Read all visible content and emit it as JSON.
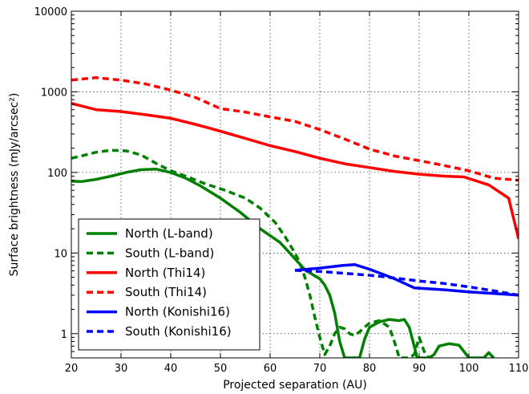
{
  "chart_data": {
    "type": "line",
    "xlabel": "Projected separation (AU)",
    "ylabel": "Surface brightness (mJy/arcsec²)",
    "xlim": [
      20,
      110
    ],
    "ylim": [
      0.5,
      10000
    ],
    "yscale": "log",
    "grid": true,
    "x_ticks": [
      "20",
      "30",
      "40",
      "50",
      "60",
      "70",
      "80",
      "90",
      "100",
      "110"
    ],
    "y_ticks": [
      "1",
      "10",
      "100",
      "1000",
      "10000"
    ],
    "legend_position": "lower-left",
    "series": [
      {
        "name": "North (L-band)",
        "color": "#008000",
        "style": "solid",
        "x": [
          20,
          22,
          25,
          28,
          31,
          34,
          37,
          40,
          43,
          46,
          50,
          54,
          58,
          62,
          65,
          67,
          69,
          70,
          71,
          72,
          73,
          74,
          75,
          75.6,
          76,
          77,
          78,
          79,
          80,
          82,
          84,
          86,
          87,
          88,
          89,
          89.6,
          90.5,
          92,
          93,
          94,
          96,
          98,
          99,
          100,
          103,
          104,
          105
        ],
        "y": [
          78,
          77,
          82,
          90,
          100,
          108,
          110,
          100,
          85,
          68,
          48,
          32,
          20,
          13.5,
          8.5,
          6.2,
          5.2,
          4.8,
          4,
          3,
          1.8,
          0.8,
          0.5,
          0.5,
          0.5,
          0.5,
          0.5,
          0.85,
          1.2,
          1.4,
          1.5,
          1.45,
          1.5,
          1.2,
          0.7,
          0.5,
          0.5,
          0.5,
          0.55,
          0.7,
          0.75,
          0.72,
          0.6,
          0.5,
          0.5,
          0.58,
          0.5
        ]
      },
      {
        "name": "South (L-band)",
        "color": "#008000",
        "style": "dashed",
        "x": [
          20,
          22,
          25,
          28,
          31,
          34,
          37,
          40,
          43,
          47,
          51,
          55,
          58,
          61,
          63,
          65,
          66,
          67,
          68,
          69,
          70,
          71,
          72,
          73,
          74,
          75,
          76,
          77,
          78,
          79,
          80,
          82,
          84,
          85,
          86,
          87,
          88,
          89,
          90,
          91,
          92
        ],
        "y": [
          150,
          160,
          178,
          188,
          185,
          165,
          130,
          105,
          90,
          72,
          60,
          48,
          36,
          24,
          16,
          10,
          7.5,
          5,
          3,
          1.6,
          0.9,
          0.55,
          0.7,
          1,
          1.2,
          1.15,
          1,
          0.95,
          1.05,
          1.2,
          1.35,
          1.45,
          1.2,
          0.8,
          0.5,
          0.5,
          0.5,
          0.55,
          0.9,
          0.6,
          0.5
        ]
      },
      {
        "name": "North (Thi14)",
        "color": "#ff0000",
        "style": "solid",
        "x": [
          20,
          25,
          30,
          35,
          40,
          45,
          50,
          55,
          60,
          65,
          70,
          75,
          80,
          85,
          90,
          95,
          99,
          104,
          108,
          110
        ],
        "y": [
          720,
          600,
          570,
          520,
          470,
          395,
          325,
          265,
          215,
          182,
          150,
          128,
          115,
          103,
          95,
          90,
          88,
          70,
          48,
          15
        ]
      },
      {
        "name": "South (Thi14)",
        "color": "#ff0000",
        "style": "dashed",
        "x": [
          20,
          25,
          30,
          35,
          40,
          45,
          50,
          55,
          60,
          65,
          70,
          75,
          80,
          85,
          90,
          95,
          100,
          105,
          110
        ],
        "y": [
          1400,
          1500,
          1400,
          1250,
          1050,
          850,
          620,
          560,
          490,
          430,
          340,
          260,
          195,
          160,
          140,
          122,
          105,
          85,
          80
        ]
      },
      {
        "name": "North (Konishi16)",
        "color": "#0000ff",
        "style": "solid",
        "x": [
          65,
          70,
          74.5,
          77,
          80,
          85,
          89,
          95,
          100,
          105,
          110
        ],
        "y": [
          6.1,
          6.5,
          7,
          7.2,
          6.3,
          4.8,
          3.7,
          3.5,
          3.3,
          3.15,
          3
        ]
      },
      {
        "name": "South (Konishi16)",
        "color": "#0000ff",
        "style": "dashed",
        "x": [
          65,
          70,
          75,
          80,
          85,
          90,
          95,
          100,
          105,
          110
        ],
        "y": [
          6.1,
          5.9,
          5.6,
          5.3,
          4.9,
          4.5,
          4.2,
          3.8,
          3.4,
          3
        ]
      }
    ]
  }
}
